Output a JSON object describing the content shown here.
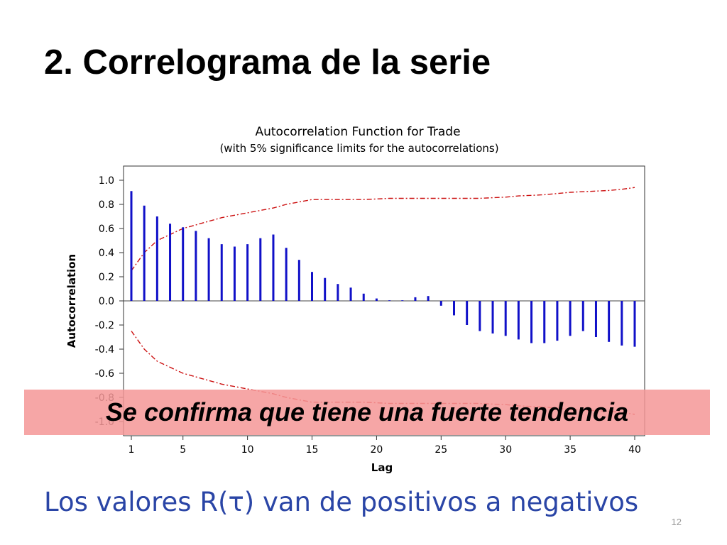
{
  "slide": {
    "title": "2. Correlograma de la serie",
    "callout": "Se confirma que tiene una fuerte tendencia",
    "bottom_text": "Los valores R(τ) van de positivos a  negativos",
    "page_number": "12"
  },
  "chart_data": {
    "type": "bar",
    "title": "Autocorrelation Function for Trade",
    "subtitle": "(with 5% significance limits for the autocorrelations)",
    "xlabel": "Lag",
    "ylabel": "Autocorrelation",
    "xlim": [
      1,
      40
    ],
    "ylim": [
      -1.0,
      1.0
    ],
    "x_ticks": [
      1,
      5,
      10,
      15,
      20,
      25,
      30,
      35,
      40
    ],
    "y_ticks": [
      "1.0",
      "0.8",
      "0.6",
      "0.4",
      "0.2",
      "0.0",
      "-0.2",
      "-0.4",
      "-0.6",
      "-0.8",
      "-1.0"
    ],
    "lags": [
      1,
      2,
      3,
      4,
      5,
      6,
      7,
      8,
      9,
      10,
      11,
      12,
      13,
      14,
      15,
      16,
      17,
      18,
      19,
      20,
      21,
      22,
      23,
      24,
      25,
      26,
      27,
      28,
      29,
      30,
      31,
      32,
      33,
      34,
      35,
      36,
      37,
      38,
      39,
      40
    ],
    "values": [
      0.91,
      0.79,
      0.7,
      0.64,
      0.61,
      0.58,
      0.52,
      0.47,
      0.45,
      0.47,
      0.52,
      0.55,
      0.44,
      0.34,
      0.24,
      0.19,
      0.14,
      0.11,
      0.06,
      0.02,
      0.005,
      0.005,
      0.03,
      0.04,
      -0.04,
      -0.12,
      -0.2,
      -0.25,
      -0.27,
      -0.29,
      -0.32,
      -0.35,
      -0.35,
      -0.33,
      -0.29,
      -0.25,
      -0.3,
      -0.34,
      -0.37,
      -0.38
    ],
    "significance_upper": [
      0.25,
      0.4,
      0.5,
      0.55,
      0.6,
      0.63,
      0.66,
      0.69,
      0.71,
      0.73,
      0.75,
      0.77,
      0.8,
      0.82,
      0.84,
      0.84,
      0.84,
      0.84,
      0.84,
      0.845,
      0.85,
      0.85,
      0.85,
      0.85,
      0.85,
      0.85,
      0.85,
      0.85,
      0.855,
      0.86,
      0.87,
      0.875,
      0.88,
      0.89,
      0.9,
      0.905,
      0.91,
      0.915,
      0.925,
      0.94
    ],
    "significance_lower": [
      -0.25,
      -0.4,
      -0.5,
      -0.55,
      -0.6,
      -0.63,
      -0.66,
      -0.69,
      -0.71,
      -0.73,
      -0.75,
      -0.77,
      -0.8,
      -0.82,
      -0.84,
      -0.84,
      -0.84,
      -0.84,
      -0.84,
      -0.845,
      -0.85,
      -0.85,
      -0.85,
      -0.85,
      -0.85,
      -0.85,
      -0.85,
      -0.85,
      -0.855,
      -0.86,
      -0.87,
      -0.875,
      -0.88,
      -0.89,
      -0.9,
      -0.905,
      -0.91,
      -0.915,
      -0.925,
      -0.94
    ],
    "grid": false,
    "bar_color": "#1010c8",
    "limit_color": "#cc1111"
  }
}
